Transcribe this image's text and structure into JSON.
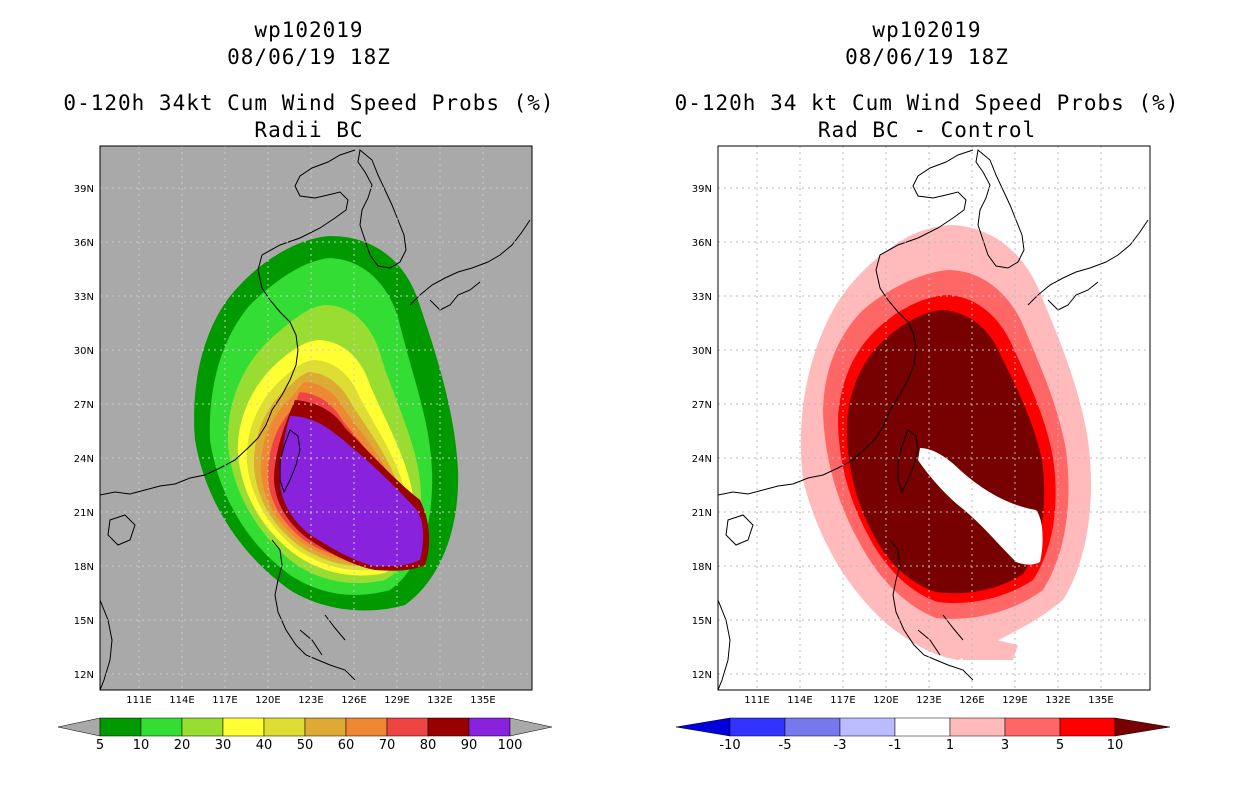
{
  "left_panel": {
    "title": {
      "storm_id": "wp102019",
      "datetime": "08/06/19 18Z",
      "product": "0-120h 34kt Cum Wind Speed Probs (%)",
      "subtitle": "Radii BC"
    },
    "map": {
      "lon_labels": [
        "111E",
        "114E",
        "117E",
        "120E",
        "123E",
        "126E",
        "129E",
        "132E",
        "135E"
      ],
      "lat_labels": [
        "12N",
        "15N",
        "18N",
        "21N",
        "24N",
        "27N",
        "30N",
        "33N",
        "36N",
        "39N"
      ],
      "background_color": "#a9a9a9"
    },
    "colorbar": {
      "labels": [
        "5",
        "10",
        "20",
        "30",
        "40",
        "50",
        "60",
        "70",
        "80",
        "90",
        "100"
      ],
      "colors": [
        "#009900",
        "#33dd33",
        "#99dd33",
        "#ffff33",
        "#dddd33",
        "#ddaa33",
        "#ee8833",
        "#ee4444",
        "#990000",
        "#8822dd"
      ]
    }
  },
  "right_panel": {
    "title": {
      "storm_id": "wp102019",
      "datetime": "08/06/19 18Z",
      "product": "0-120h 34 kt Cum Wind Speed Probs (%)",
      "subtitle": "Rad BC - Control"
    },
    "map": {
      "lon_labels": [
        "111E",
        "114E",
        "117E",
        "120E",
        "123E",
        "126E",
        "129E",
        "132E",
        "135E"
      ],
      "lat_labels": [
        "12N",
        "15N",
        "18N",
        "21N",
        "24N",
        "27N",
        "30N",
        "33N",
        "36N",
        "39N"
      ],
      "background_color": "#ffffff"
    },
    "colorbar": {
      "labels": [
        "-10",
        "-5",
        "-3",
        "-1",
        "1",
        "3",
        "5",
        "10"
      ],
      "colors": [
        "#0000dd",
        "#3333ff",
        "#7777ee",
        "#bbbbff",
        "#ffffff",
        "#ffbbbb",
        "#ff6666",
        "#ff0000",
        "#770000"
      ]
    }
  }
}
